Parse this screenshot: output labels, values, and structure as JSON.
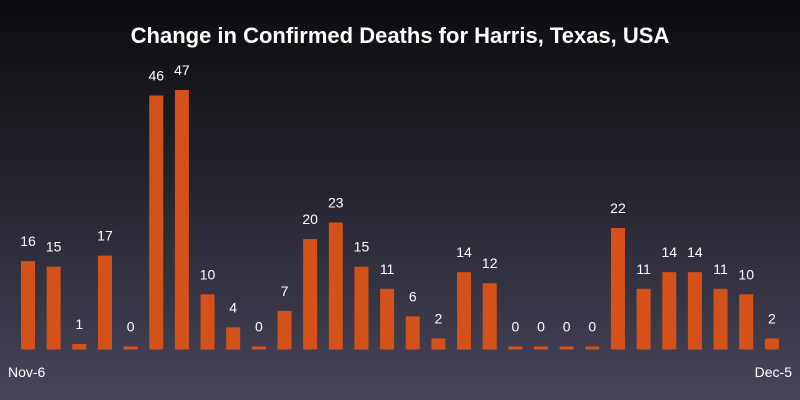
{
  "chart_data": {
    "type": "bar",
    "title": "Change in Confirmed Deaths for Harris, Texas, USA",
    "xlabel": "",
    "ylabel": "",
    "x_start_label": "Nov-6",
    "x_end_label": "Dec-5",
    "values": [
      16,
      15,
      1,
      17,
      0,
      46,
      47,
      10,
      4,
      0,
      7,
      20,
      23,
      15,
      11,
      6,
      2,
      14,
      12,
      0,
      0,
      0,
      0,
      22,
      11,
      14,
      14,
      11,
      10,
      2
    ],
    "ylim": [
      0,
      47
    ],
    "grid": false,
    "legend": "none",
    "bar_color": "#d4521a",
    "text_color": "#ffffff"
  }
}
